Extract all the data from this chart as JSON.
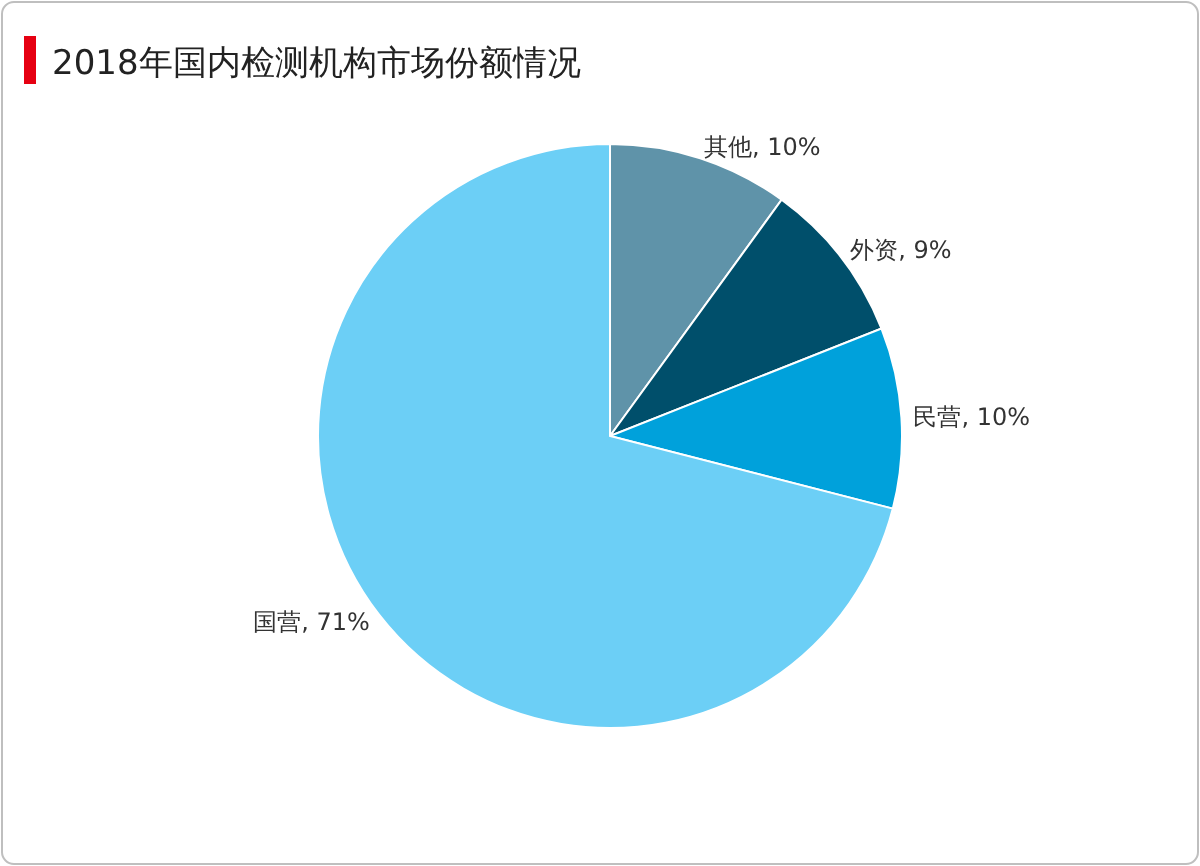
{
  "chart_data": {
    "type": "pie",
    "title": "2018年国内检测机构市场份额情况",
    "categories": [
      "其他",
      "外资",
      "民营",
      "国营"
    ],
    "values": [
      10,
      9,
      10,
      71
    ],
    "value_labels": [
      "10%",
      "9%",
      "10%",
      "71%"
    ],
    "colors": [
      "#5f93a9",
      "#004f6b",
      "#00a1db",
      "#6ccff6"
    ]
  }
}
